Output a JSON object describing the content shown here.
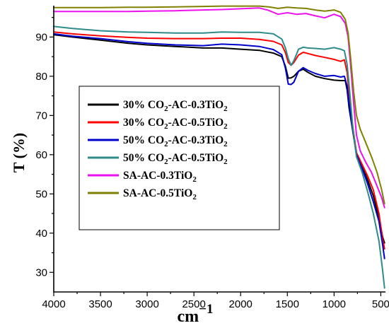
{
  "chart_data": {
    "type": "line",
    "title": "",
    "xlabel": "cm",
    "xlabel_sup": "−1",
    "ylabel": "T (%)",
    "xlim": [
      4000,
      450
    ],
    "ylim": [
      25,
      98
    ],
    "x_reversed": true,
    "xticks": [
      4000,
      3500,
      3000,
      2500,
      2000,
      1500,
      1000,
      500
    ],
    "yticks": [
      30,
      40,
      50,
      60,
      70,
      80,
      90
    ],
    "legend_position": "center-left",
    "grid": false,
    "series": [
      {
        "name": "30% CO2-AC-0.3TiO2",
        "legend": {
          "t1": "30% CO",
          "s1": "2",
          "t2": "-AC-0.3TiO",
          "s2": "2"
        },
        "color": "#000000",
        "points": [
          [
            4000,
            90.6
          ],
          [
            3800,
            90.0
          ],
          [
            3500,
            89.2
          ],
          [
            3200,
            88.4
          ],
          [
            3000,
            88.0
          ],
          [
            2700,
            87.6
          ],
          [
            2400,
            87.2
          ],
          [
            2200,
            87.2
          ],
          [
            2000,
            86.9
          ],
          [
            1800,
            86.6
          ],
          [
            1650,
            85.9
          ],
          [
            1560,
            85.0
          ],
          [
            1520,
            82.5
          ],
          [
            1490,
            79.5
          ],
          [
            1460,
            79.6
          ],
          [
            1430,
            80.0
          ],
          [
            1380,
            81.3
          ],
          [
            1330,
            81.8
          ],
          [
            1280,
            81.0
          ],
          [
            1200,
            80.0
          ],
          [
            1100,
            79.4
          ],
          [
            1000,
            79.0
          ],
          [
            930,
            78.9
          ],
          [
            880,
            78.9
          ],
          [
            860,
            76.5
          ],
          [
            840,
            72.0
          ],
          [
            800,
            66.0
          ],
          [
            760,
            60.0
          ],
          [
            700,
            57.0
          ],
          [
            640,
            53.5
          ],
          [
            580,
            49.5
          ],
          [
            520,
            44.0
          ],
          [
            480,
            39.0
          ],
          [
            460,
            37.5
          ]
        ]
      },
      {
        "name": "30% CO2-AC-0.5TiO2",
        "legend": {
          "t1": "30% CO",
          "s1": "2",
          "t2": "-AC-0.5TiO",
          "s2": "2"
        },
        "color": "#ff0000",
        "points": [
          [
            4000,
            91.3
          ],
          [
            3800,
            90.8
          ],
          [
            3500,
            90.3
          ],
          [
            3200,
            89.9
          ],
          [
            3000,
            89.7
          ],
          [
            2700,
            89.6
          ],
          [
            2400,
            89.6
          ],
          [
            2200,
            89.7
          ],
          [
            2000,
            89.7
          ],
          [
            1800,
            89.4
          ],
          [
            1650,
            88.9
          ],
          [
            1560,
            88.0
          ],
          [
            1520,
            86.0
          ],
          [
            1490,
            83.5
          ],
          [
            1460,
            82.8
          ],
          [
            1430,
            83.5
          ],
          [
            1380,
            85.4
          ],
          [
            1330,
            86.1
          ],
          [
            1280,
            85.8
          ],
          [
            1200,
            85.3
          ],
          [
            1100,
            84.8
          ],
          [
            1000,
            84.3
          ],
          [
            930,
            83.8
          ],
          [
            890,
            84.2
          ],
          [
            860,
            81.0
          ],
          [
            840,
            76.0
          ],
          [
            800,
            67.0
          ],
          [
            760,
            60.5
          ],
          [
            700,
            57.5
          ],
          [
            640,
            54.5
          ],
          [
            580,
            51.0
          ],
          [
            520,
            45.0
          ],
          [
            480,
            38.5
          ],
          [
            460,
            36.0
          ]
        ]
      },
      {
        "name": "50% CO2-AC-0.3TiO2",
        "legend": {
          "t1": "50% CO",
          "s1": "2",
          "t2": "-AC-0.3TiO",
          "s2": "2"
        },
        "color": "#0000cc",
        "points": [
          [
            4000,
            90.8
          ],
          [
            3800,
            90.2
          ],
          [
            3500,
            89.6
          ],
          [
            3200,
            88.8
          ],
          [
            3000,
            88.4
          ],
          [
            2700,
            88.0
          ],
          [
            2400,
            87.8
          ],
          [
            2200,
            88.2
          ],
          [
            2000,
            88.0
          ],
          [
            1800,
            87.6
          ],
          [
            1650,
            86.8
          ],
          [
            1560,
            85.5
          ],
          [
            1520,
            82.0
          ],
          [
            1490,
            78.0
          ],
          [
            1460,
            77.9
          ],
          [
            1430,
            78.5
          ],
          [
            1380,
            81.3
          ],
          [
            1330,
            82.2
          ],
          [
            1280,
            81.5
          ],
          [
            1200,
            80.7
          ],
          [
            1100,
            80.0
          ],
          [
            1000,
            80.2
          ],
          [
            930,
            79.8
          ],
          [
            890,
            80.0
          ],
          [
            860,
            77.5
          ],
          [
            840,
            73.0
          ],
          [
            800,
            66.5
          ],
          [
            760,
            60.0
          ],
          [
            700,
            56.5
          ],
          [
            640,
            52.5
          ],
          [
            580,
            48.0
          ],
          [
            520,
            43.0
          ],
          [
            480,
            37.0
          ],
          [
            460,
            33.5
          ]
        ]
      },
      {
        "name": "50% CO2-AC-0.5TiO2",
        "legend": {
          "t1": "50% CO",
          "s1": "2",
          "t2": "-AC-0.5TiO",
          "s2": "2"
        },
        "color": "#2e8b8b",
        "points": [
          [
            4000,
            92.7
          ],
          [
            3800,
            92.2
          ],
          [
            3500,
            91.6
          ],
          [
            3200,
            91.3
          ],
          [
            3000,
            91.2
          ],
          [
            2700,
            91.0
          ],
          [
            2400,
            91.0
          ],
          [
            2200,
            91.3
          ],
          [
            2000,
            91.2
          ],
          [
            1800,
            91.2
          ],
          [
            1650,
            90.8
          ],
          [
            1560,
            89.5
          ],
          [
            1520,
            87.2
          ],
          [
            1490,
            84.5
          ],
          [
            1460,
            82.8
          ],
          [
            1430,
            84.0
          ],
          [
            1380,
            86.9
          ],
          [
            1330,
            87.4
          ],
          [
            1280,
            87.2
          ],
          [
            1200,
            87.1
          ],
          [
            1100,
            86.9
          ],
          [
            1000,
            87.3
          ],
          [
            930,
            86.9
          ],
          [
            890,
            86.5
          ],
          [
            860,
            83.0
          ],
          [
            840,
            78.0
          ],
          [
            800,
            67.0
          ],
          [
            760,
            59.5
          ],
          [
            700,
            55.5
          ],
          [
            640,
            50.5
          ],
          [
            580,
            45.0
          ],
          [
            520,
            38.0
          ],
          [
            480,
            30.5
          ],
          [
            460,
            26.0
          ]
        ]
      },
      {
        "name": "SA-AC-0.3TiO2",
        "legend": {
          "t1": "SA-AC-0.3TiO",
          "s1": "2",
          "t2": "",
          "s2": ""
        },
        "color": "#ee11ee",
        "points": [
          [
            4000,
            96.5
          ],
          [
            3800,
            96.5
          ],
          [
            3500,
            96.5
          ],
          [
            3200,
            96.5
          ],
          [
            3000,
            96.6
          ],
          [
            2700,
            96.7
          ],
          [
            2400,
            96.9
          ],
          [
            2200,
            97.0
          ],
          [
            2000,
            97.2
          ],
          [
            1800,
            97.4
          ],
          [
            1700,
            96.8
          ],
          [
            1600,
            95.8
          ],
          [
            1500,
            96.2
          ],
          [
            1400,
            95.8
          ],
          [
            1300,
            96.0
          ],
          [
            1200,
            95.4
          ],
          [
            1100,
            94.9
          ],
          [
            1000,
            95.8
          ],
          [
            930,
            95.2
          ],
          [
            880,
            93.5
          ],
          [
            850,
            90.0
          ],
          [
            820,
            82.0
          ],
          [
            790,
            73.0
          ],
          [
            760,
            65.0
          ],
          [
            720,
            61.0
          ],
          [
            660,
            58.0
          ],
          [
            600,
            55.5
          ],
          [
            540,
            52.0
          ],
          [
            490,
            49.0
          ],
          [
            460,
            46.5
          ]
        ]
      },
      {
        "name": "SA-AC-0.5TiO2",
        "legend": {
          "t1": "SA-AC-0.5TiO",
          "s1": "2",
          "t2": "",
          "s2": ""
        },
        "color": "#808000",
        "points": [
          [
            4000,
            97.5
          ],
          [
            3800,
            97.5
          ],
          [
            3500,
            97.5
          ],
          [
            3200,
            97.6
          ],
          [
            3000,
            97.6
          ],
          [
            2700,
            97.7
          ],
          [
            2400,
            97.8
          ],
          [
            2200,
            97.9
          ],
          [
            2000,
            97.9
          ],
          [
            1800,
            97.9
          ],
          [
            1700,
            97.7
          ],
          [
            1600,
            97.3
          ],
          [
            1500,
            97.6
          ],
          [
            1400,
            97.4
          ],
          [
            1300,
            97.3
          ],
          [
            1200,
            96.9
          ],
          [
            1100,
            96.6
          ],
          [
            1000,
            96.9
          ],
          [
            930,
            96.3
          ],
          [
            880,
            94.5
          ],
          [
            850,
            91.0
          ],
          [
            820,
            84.0
          ],
          [
            790,
            76.0
          ],
          [
            760,
            70.0
          ],
          [
            720,
            66.5
          ],
          [
            660,
            63.0
          ],
          [
            600,
            59.5
          ],
          [
            540,
            55.5
          ],
          [
            490,
            51.0
          ],
          [
            460,
            47.5
          ]
        ]
      }
    ]
  }
}
